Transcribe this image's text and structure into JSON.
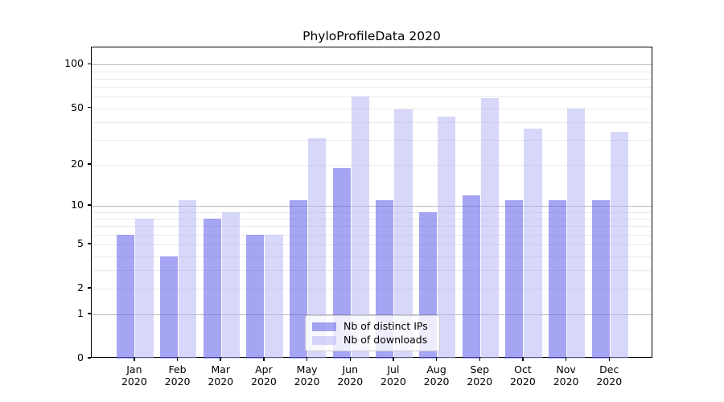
{
  "chart_data": {
    "type": "bar",
    "title": "PhyloProfileData 2020",
    "categories": [
      "Jan",
      "Feb",
      "Mar",
      "Apr",
      "May",
      "Jun",
      "Jul",
      "Aug",
      "Sep",
      "Oct",
      "Nov",
      "Dec"
    ],
    "year": "2020",
    "series": [
      {
        "name": "Nb of distinct IPs",
        "values": [
          6,
          4,
          8,
          6,
          11,
          19,
          11,
          9,
          12,
          11,
          11,
          11
        ],
        "color": "#6464eb",
        "alpha": 0.58
      },
      {
        "name": "Nb of downloads",
        "values": [
          8,
          11,
          9,
          6,
          31,
          60,
          49,
          44,
          59,
          36,
          50,
          34
        ],
        "color": "#afaff5",
        "alpha": 0.5
      }
    ],
    "xlabel": "",
    "ylabel": "",
    "yscale": "log1p",
    "ylim": [
      0,
      130
    ],
    "yticks": [
      0,
      1,
      2,
      5,
      10,
      20,
      50,
      100
    ],
    "major_gridlines": [
      1,
      10,
      100
    ],
    "minor_gridlines": [
      2,
      3,
      4,
      5,
      6,
      7,
      8,
      9,
      20,
      30,
      40,
      50,
      60,
      70,
      80,
      90
    ],
    "grid": true,
    "legend_position": "bottom-center",
    "colors": {
      "major_grid": "#bcbcbc",
      "minor_grid": "#eaeaea",
      "spine": "#000000",
      "legend_border": "#cccccc"
    }
  }
}
